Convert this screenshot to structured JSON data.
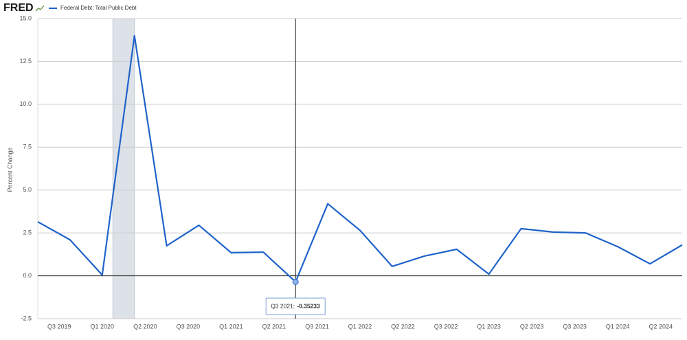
{
  "logo": "FRED",
  "chart_data": {
    "type": "line",
    "legend_position": "top-left",
    "ylabel": "Percent Change",
    "series": [
      {
        "name": "Federal Debt: Total Public Debt",
        "color": "#1f63c9",
        "values": [
          3.15,
          2.1,
          0.05,
          14.0,
          1.75,
          2.95,
          1.35,
          1.38,
          -0.35233,
          4.2,
          2.65,
          0.55,
          1.15,
          1.55,
          0.1,
          2.75,
          2.55,
          2.5,
          1.7,
          0.7,
          1.8
        ]
      }
    ],
    "x_axis_labels": [
      "Q3 2019",
      "Q1 2020",
      "Q2 2020",
      "Q3 2020",
      "Q1 2021",
      "Q2 2021",
      "Q3 2021",
      "Q1 2022",
      "Q2 2022",
      "Q3 2022",
      "Q1 2023",
      "Q2 2023",
      "Q3 2023",
      "Q1 2024",
      "Q2 2024"
    ],
    "shaded_ranges": [
      [
        2.33,
        3.0
      ]
    ],
    "ylim": [
      -2.5,
      15
    ],
    "yticks": [
      -2.5,
      {
        "value": 0,
        "label": "0.0"
      },
      2.5,
      {
        "value": 5,
        "label": "5.0"
      },
      7.5,
      {
        "value": 10,
        "label": "10.0"
      },
      12.5,
      {
        "value": 15,
        "label": "15.0"
      }
    ],
    "grid": true,
    "tooltip": {
      "index": 8,
      "label": "Q3 2021:",
      "value": -0.35233
    }
  }
}
